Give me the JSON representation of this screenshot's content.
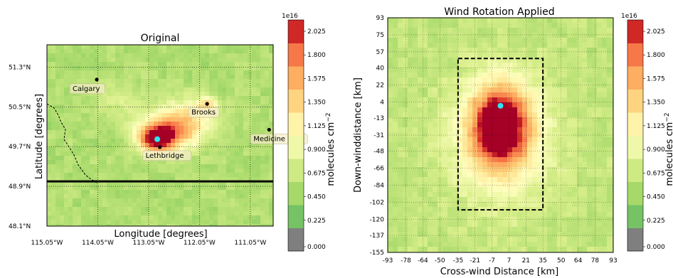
{
  "chart_data": [
    {
      "type": "heatmap",
      "title": "Original",
      "xlabel": "Longitude [degrees]",
      "ylabel": "Latitude [degrees]",
      "xticks": [
        "115.05°W",
        "114.05°W",
        "113.05°W",
        "112.05°W",
        "111.05°W"
      ],
      "yticks": [
        "51.3°N",
        "50.5°N",
        "49.7°N",
        "48.9°N",
        "48.1°N"
      ],
      "xlim": [
        -115.05,
        -110.6
      ],
      "ylim": [
        48.1,
        51.75
      ],
      "grid": true,
      "colorbar": {
        "label": "molecules cm",
        "label_exponent": "−2",
        "exponent": "1e16",
        "ticks": [
          "2.025",
          "1.800",
          "1.575",
          "1.350",
          "1.125",
          "0.900",
          "0.675",
          "0.450",
          "0.225",
          "0.000"
        ]
      },
      "cities": [
        {
          "name": "Calgary",
          "lon": -114.07,
          "lat": 51.05
        },
        {
          "name": "Brooks",
          "lon": -111.9,
          "lat": 50.56
        },
        {
          "name": "Medicine Hat",
          "lon": -110.68,
          "lat": 50.04
        },
        {
          "name": "Lethbridge",
          "lon": -112.83,
          "lat": 49.69
        }
      ],
      "source_point": {
        "lon": -112.88,
        "lat": 49.85,
        "color": "#2ee6f0"
      },
      "plume": [
        {
          "lon": -112.9,
          "lat": 49.86,
          "r": 0.35,
          "amp": 1.0
        },
        {
          "lon": -112.6,
          "lat": 50.02,
          "r": 0.55,
          "amp": 0.45
        },
        {
          "lon": -112.3,
          "lat": 50.25,
          "r": 0.6,
          "amp": 0.3
        },
        {
          "lon": -111.9,
          "lat": 50.56,
          "r": 0.2,
          "amp": 0.35
        },
        {
          "lon": -113.5,
          "lat": 50.6,
          "r": 0.5,
          "amp": 0.15
        }
      ],
      "border_lat": 49.0
    },
    {
      "type": "heatmap",
      "title": "Wind Rotation Applied",
      "xlabel": "Cross-wind Distance [km]",
      "ylabel": "Down-winddistance [km]",
      "xticks": [
        "-93",
        "-78",
        "-64",
        "-50",
        "-35",
        "-21",
        "-7",
        "7",
        "21",
        "35",
        "50",
        "64",
        "78",
        "93"
      ],
      "yticks": [
        "93",
        "75",
        "57",
        "40",
        "22",
        "4",
        "-13",
        "-31",
        "-48",
        "-66",
        "-84",
        "-102",
        "-120",
        "-137",
        "-155"
      ],
      "xlim": [
        -93,
        93
      ],
      "ylim": [
        -155,
        93
      ],
      "grid": true,
      "box": {
        "x0": -35,
        "x1": 35,
        "y0": -110,
        "y1": 50
      },
      "source_point": {
        "x": 0,
        "y": 0,
        "color": "#2ee6f0"
      },
      "plume": [
        {
          "x": 0,
          "y": -20,
          "rx": 22,
          "ry": 38,
          "amp": 1.0
        },
        {
          "x": 0,
          "y": -35,
          "rx": 40,
          "ry": 65,
          "amp": 0.4
        }
      ],
      "colorbar": {
        "label": "molecules cm",
        "label_exponent": "−2",
        "exponent": "1e16",
        "ticks": [
          "2.025",
          "1.800",
          "1.575",
          "1.350",
          "1.125",
          "0.900",
          "0.675",
          "0.450",
          "0.225",
          "0.000"
        ]
      }
    }
  ]
}
